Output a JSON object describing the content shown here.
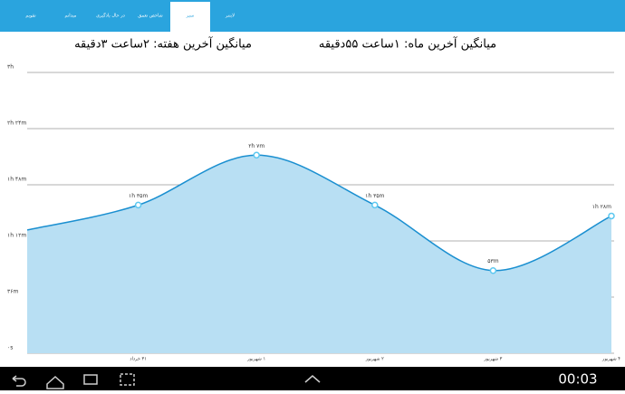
{
  "tabs": [
    "تقویم",
    "میدانم",
    "در حال یادگیری",
    "شاخص تعمق",
    "سیر",
    "لایتنر"
  ],
  "selected_tab": 4,
  "stats": {
    "week": "میانگین آخرین هفته: ۲ساعت  ۳دقیقه",
    "month": "میانگین آخرین ماه: ۱ساعت  ۵۵دقیقه"
  },
  "chart_data": {
    "type": "area",
    "categories": [
      null,
      "۳۱ خرداد",
      "۱ شهریور",
      "۲ شهریور",
      "۳ شهریور",
      "۴ شهریور"
    ],
    "values": [
      79,
      95,
      127,
      95,
      53,
      88
    ],
    "value_labels": [
      null,
      "۱h ۳۵m",
      "۲h ۷m",
      "۱h ۳۵m",
      "۵۳m",
      "۱h ۲۸m"
    ],
    "color": "#1a8fd0",
    "fill": "#b8dff3",
    "ylim": [
      0,
      180
    ],
    "yticks": [
      {
        "value": 0,
        "label": "۰s"
      },
      {
        "value": 36,
        "label": "۳۶m"
      },
      {
        "value": 72,
        "label": "۱h ۱۲m"
      },
      {
        "value": 108,
        "label": "۱h ۴۸m"
      },
      {
        "value": 144,
        "label": "۲h ۲۴m"
      },
      {
        "value": 180,
        "label": "۳h"
      }
    ],
    "grid": true
  },
  "status": {
    "time": "00:03"
  }
}
